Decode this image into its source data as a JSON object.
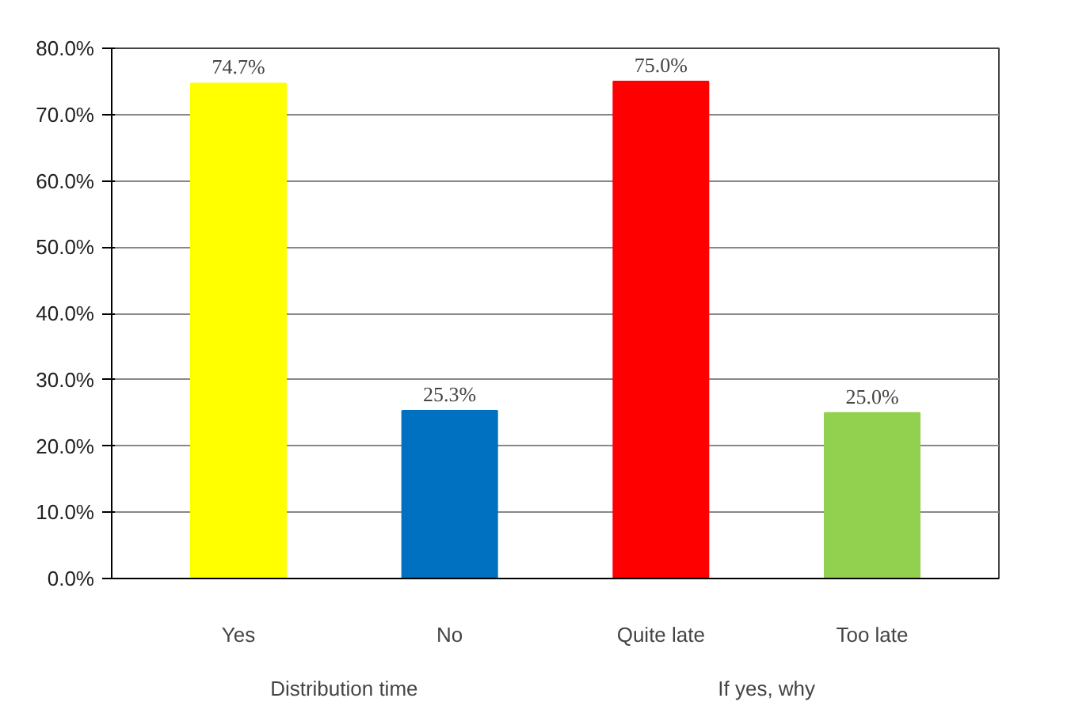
{
  "chart_data": {
    "type": "bar",
    "categories": [
      "Yes",
      "No",
      "Quite late",
      "Too late"
    ],
    "values": [
      74.7,
      25.3,
      75.0,
      25.0
    ],
    "colors": [
      "#ffff00",
      "#0070c0",
      "#ff0000",
      "#92d050"
    ],
    "value_labels": [
      "74.7%",
      "25.3%",
      "75.0%",
      "25.0%"
    ],
    "ylim": [
      0,
      80
    ],
    "yticks": [
      {
        "value": 0,
        "label": "0.0%"
      },
      {
        "value": 10,
        "label": "10.0%"
      },
      {
        "value": 20,
        "label": "20.0%"
      },
      {
        "value": 30,
        "label": "30.0%"
      },
      {
        "value": 40,
        "label": "40.0%"
      },
      {
        "value": 50,
        "label": "50.0%"
      },
      {
        "value": 60,
        "label": "60.0%"
      },
      {
        "value": 70,
        "label": "70.0%"
      },
      {
        "value": 80,
        "label": "80.0%"
      }
    ],
    "grid": "y",
    "annotations": [
      "Distribution time",
      "If yes, why"
    ]
  }
}
